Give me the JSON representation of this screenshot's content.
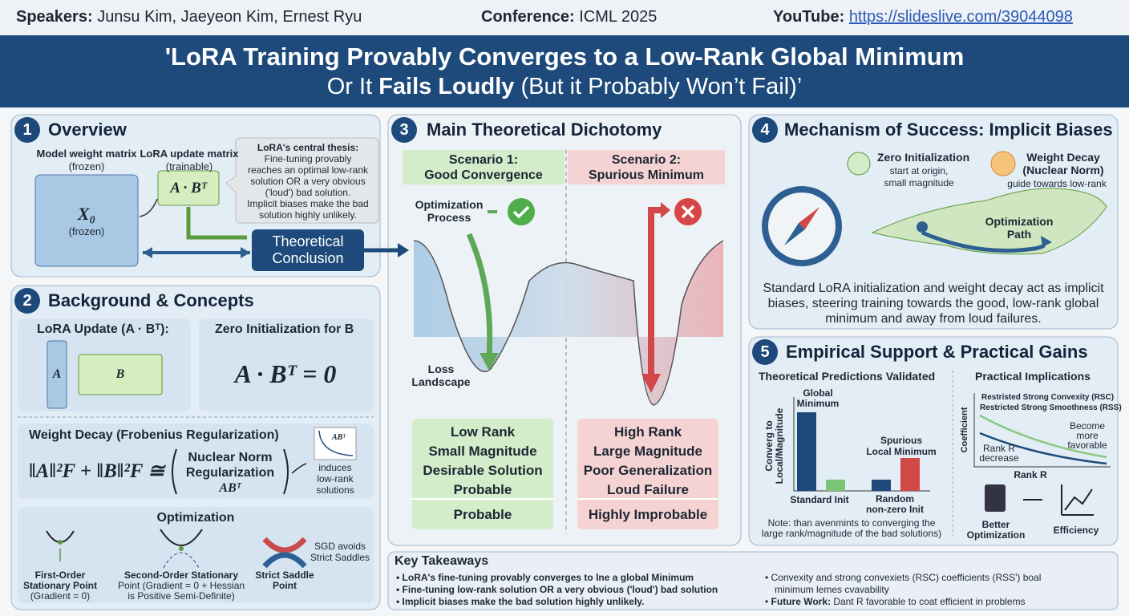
{
  "header": {
    "speakers_label": "Speakers:",
    "speakers": "Junsu Kim, Jaeyeon Kim, Ernest Ryu",
    "conference_label": "Conference:",
    "conference": "ICML 2025",
    "youtube_label": "YouTube:",
    "youtube_url": "https://slideslive.com/39044098"
  },
  "title": {
    "line1": "'LoRA Training Provably Converges to a Low-Rank Global Minimum",
    "line2_pre": "Or It ",
    "line2_bold": "Fails Loudly",
    "line2_post": " (But it Probably Won’t Fail)’"
  },
  "overview": {
    "number": "1",
    "heading": "Overview",
    "model_label": "Model weight matrix",
    "model_sub": "(frozen)",
    "x0": "X₀",
    "x0_sub": "(frozen)",
    "lora_label": "LoRA update matrix",
    "lora_sub": "(trainable)",
    "lora_formula": "A · Bᵀ",
    "thesis": [
      "LoRA's central thesis:",
      "Fine-tuning provably",
      "reaches an optimal low-rank",
      "solution OR a very obvious",
      "('loud') bad solution.",
      "Implicit biases make the bad",
      "solution highly unlikely."
    ],
    "conclusion": [
      "Theoretical",
      "Conclusion"
    ]
  },
  "background": {
    "number": "2",
    "heading": "Background & Concepts",
    "lora_update": "LoRA Update (A · Bᵀ):",
    "a": "A",
    "b": "B",
    "zero_init": "Zero Initialization for B",
    "zero_formula": "A · Bᵀ = 0",
    "weight_decay": "Weight Decay (Frobenius Regularization)",
    "formula_lhs": "‖A‖²F + ‖B‖²F ≅",
    "nuclear": [
      "Nuclear Norm",
      "Regularization",
      "ABᵀ"
    ],
    "mini_plot": "ABᵀ",
    "induces": [
      "induces",
      "low-rank",
      "solutions"
    ],
    "optimization": "Optimization",
    "first_order": [
      "First-Order",
      "Stationary Point",
      "(Gradient = 0)"
    ],
    "second_order": [
      "Second-Order Stationary",
      "Point (Gradient = 0 + Hessian",
      "is Positive Semi-Definite)"
    ],
    "strict_saddle": [
      "Strict Saddle",
      "Point"
    ],
    "sgd": [
      "SGD avoids",
      "Strict Saddles"
    ]
  },
  "dichotomy": {
    "number": "3",
    "heading": "Main Theoretical Dichotomy",
    "scenario1": [
      "Scenario 1:",
      "Good Convergence"
    ],
    "scenario2": [
      "Scenario 2:",
      "Spurious Minimum"
    ],
    "process": [
      "Optimization",
      "Process"
    ],
    "landscape": [
      "Loss",
      "Landscape"
    ],
    "good": [
      "Low Rank",
      "Small Magnitude",
      "Desirable Solution",
      "Probable"
    ],
    "good_footer": "Probable",
    "bad": [
      "High Rank",
      "Large Magnitude",
      "Poor Generalization",
      "Loud Failure"
    ],
    "bad_footer": "Highly Improbable"
  },
  "mechanism": {
    "number": "4",
    "heading": "Mechanism of Success: Implicit Biases",
    "zero_init": "Zero Initialization",
    "zero_sub": [
      "start at origin,",
      "small magnitude"
    ],
    "weight_decay": [
      "Weight Decay",
      "(Nuclear Norm)"
    ],
    "wd_sub": "guide towards low-rank",
    "path": [
      "Optimization",
      "Path"
    ],
    "summary": [
      "Standard LoRA initialization and weight decay act as implicit",
      "biases, steering training towards the good, low-rank global",
      "minimum and away from loud failures."
    ]
  },
  "empirical": {
    "number": "5",
    "heading": "Empirical Support & Practical Gains",
    "validated": "Theoretical Predictions Validated",
    "y_label": [
      "Converg to",
      "Local/Magnitude"
    ],
    "global_min": [
      "Global",
      "Minimum"
    ],
    "spurious": [
      "Spurious",
      "Local Minimum"
    ],
    "standard_init": "Standard Init",
    "random_init": [
      "Random",
      "non-zero Init"
    ],
    "note": [
      "Note: than avenmints to converging the",
      "large rank/magnitude of the bad solutions)"
    ],
    "practical": "Practical Implications",
    "rsc": "Restristed Strong Convexity (RSC)",
    "rss": "Restricted Strong Smoothness (RSS)",
    "coefficient": "Coefficient",
    "favorable": [
      "Become",
      "more",
      "favorable"
    ],
    "rank_decrease": [
      "Rank R",
      "decrease"
    ],
    "rank_axis": "Rank R",
    "better": [
      "Better",
      "Optimization"
    ],
    "efficiency": "Efficiency"
  },
  "takeaways": {
    "heading": "Key Takeaways",
    "left": [
      "LoRA's fine-tuning provably converges to lne a global Minimum",
      "Fine-tuning low-rank solution OR a very obvious ('loud') bad solution",
      "Implicit biases make the bad solution highly unlikely."
    ],
    "right_1": "Convexity and strong convexiets (RSC) coefficients (RSS') boal",
    "right_1b": "minimum lemes cvavability",
    "future_label": "Future Work:",
    "future": "Dant R favorable to coat efficient in problems"
  }
}
